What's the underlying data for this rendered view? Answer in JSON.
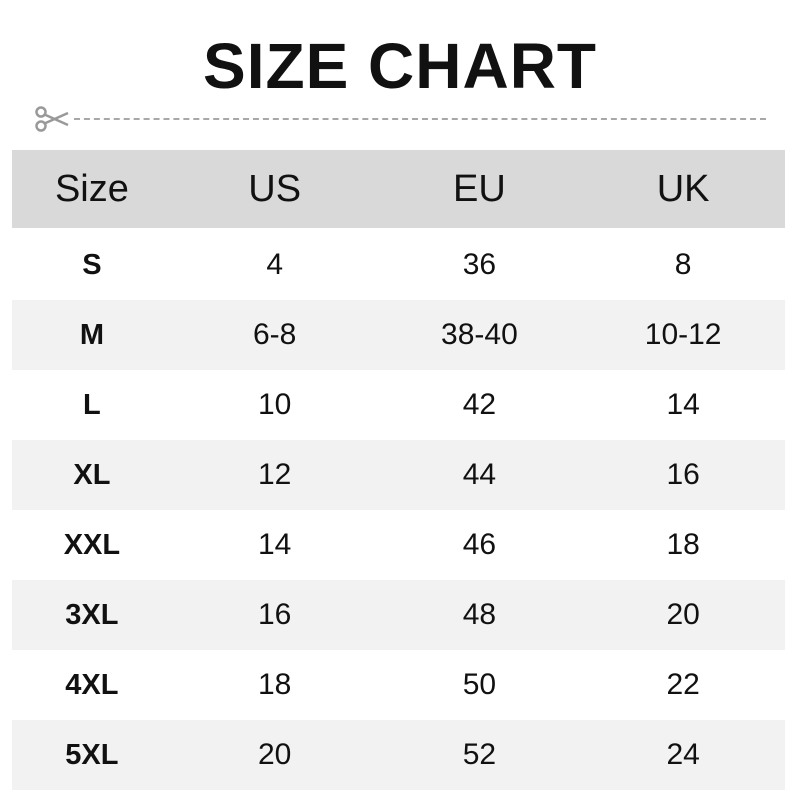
{
  "title": "SIZE CHART",
  "icons": {
    "cut": "scissors-icon"
  },
  "colors": {
    "header_bg": "#d9d9d9",
    "alt_row_bg": "#f2f2f2",
    "text": "#111111",
    "dash": "#a8a8a8"
  },
  "table": {
    "headers": [
      "Size",
      "US",
      "EU",
      "UK"
    ],
    "rows": [
      [
        "S",
        "4",
        "36",
        "8"
      ],
      [
        "M",
        "6-8",
        "38-40",
        "10-12"
      ],
      [
        "L",
        "10",
        "42",
        "14"
      ],
      [
        "XL",
        "12",
        "44",
        "16"
      ],
      [
        "XXL",
        "14",
        "46",
        "18"
      ],
      [
        "3XL",
        "16",
        "48",
        "20"
      ],
      [
        "4XL",
        "18",
        "50",
        "22"
      ],
      [
        "5XL",
        "20",
        "52",
        "24"
      ]
    ]
  }
}
